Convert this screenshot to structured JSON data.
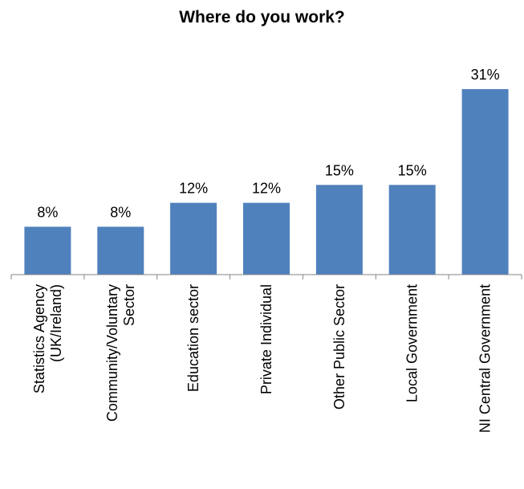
{
  "chart_data": {
    "type": "bar",
    "title": "Where do you work?",
    "categories": [
      [
        "Statistics Agency",
        "(UK/Ireland)"
      ],
      [
        "Community/Voluntary",
        "Sector"
      ],
      [
        "Education sector"
      ],
      [
        "Private Individual"
      ],
      [
        "Other Public Sector"
      ],
      [
        "Local Government"
      ],
      [
        "NI Central Government"
      ]
    ],
    "values": [
      8,
      8,
      12,
      12,
      15,
      15,
      31
    ],
    "data_labels": [
      "8%",
      "8%",
      "12%",
      "12%",
      "15%",
      "15%",
      "31%"
    ],
    "value_unit": "%",
    "ylim": [
      0,
      31
    ],
    "grid": false,
    "legend": "none",
    "bar_color": "#4f81bd",
    "axis_color": "#868686"
  }
}
